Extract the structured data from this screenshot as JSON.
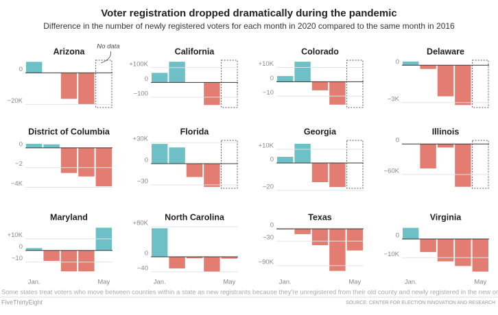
{
  "title": "Voter registration dropped dramatically during the pandemic",
  "subtitle": "Difference in the number of newly registered voters for each month in 2020 compared to the same month in 2016",
  "note": "Some states treat voters who move between counties within a state as new registrants because they're unregistered from their old county and newly registered in the new one.",
  "credit": "FiveThirtyEight",
  "source": "SOURCE: CENTER FOR ELECTION INNOVATION AND RESEARCH",
  "chart_data": [
    {
      "type": "bar",
      "title": "Arizona",
      "annotation": "No data",
      "categories": [
        null,
        null,
        null,
        null,
        null
      ],
      "values": [
        7000,
        0,
        -16500,
        -20000,
        null
      ],
      "ylim": [
        -22000,
        8000
      ],
      "yticks": [
        0,
        {
          "value": -20000,
          "label": "−20K"
        }
      ],
      "colors": {
        "positive": "#6cc0c6",
        "negative": "#e37d71"
      }
    },
    {
      "type": "bar",
      "title": "California",
      "categories": [
        null,
        null,
        null,
        null,
        null
      ],
      "values": [
        65000,
        140000,
        0,
        -153000,
        null
      ],
      "ylim": [
        -170000,
        150000
      ],
      "yticks": [
        {
          "value": 100000,
          "label": "+100K"
        },
        0,
        {
          "value": -100000,
          "label": "−100"
        }
      ],
      "colors": {
        "positive": "#6cc0c6",
        "negative": "#e37d71"
      }
    },
    {
      "type": "bar",
      "title": "Colorado",
      "categories": [
        null,
        null,
        null,
        null,
        null
      ],
      "values": [
        4000,
        14000,
        -6000,
        -16000,
        null
      ],
      "ylim": [
        -18000,
        15000
      ],
      "yticks": [
        {
          "value": 10000,
          "label": "+10K"
        },
        0,
        {
          "value": -10000,
          "label": "−10"
        }
      ],
      "colors": {
        "positive": "#6cc0c6",
        "negative": "#e37d71"
      }
    },
    {
      "type": "bar",
      "title": "Delaware",
      "categories": [
        null,
        null,
        null,
        null,
        null
      ],
      "values": [
        300,
        -300,
        -2500,
        -3200,
        null
      ],
      "ylim": [
        -3400,
        400
      ],
      "yticks": [
        0,
        {
          "value": -3000,
          "label": "−3K"
        }
      ],
      "colors": {
        "positive": "#6cc0c6",
        "negative": "#e37d71"
      }
    },
    {
      "type": "bar",
      "title": "District of Columbia",
      "categories": [
        null,
        null,
        null,
        null,
        null
      ],
      "values": [
        400,
        350,
        -2550,
        -2900,
        -3900
      ],
      "ylim": [
        -4100,
        750
      ],
      "yticks": [
        0,
        {
          "value": -2000,
          "label": "−2"
        },
        {
          "value": -4000,
          "label": "−4K"
        }
      ],
      "colors": {
        "positive": "#6cc0c6",
        "negative": "#e37d71"
      }
    },
    {
      "type": "bar",
      "title": "Florida",
      "categories": [
        null,
        null,
        null,
        null,
        null
      ],
      "values": [
        28000,
        23000,
        -19000,
        -33000,
        null
      ],
      "ylim": [
        -35000,
        33000
      ],
      "yticks": [
        {
          "value": 30000,
          "label": "+30K"
        },
        0,
        {
          "value": -30000,
          "label": "−30"
        }
      ],
      "colors": {
        "positive": "#6cc0c6",
        "negative": "#e37d71"
      }
    },
    {
      "type": "bar",
      "title": "Georgia",
      "categories": [
        null,
        null,
        null,
        null,
        null
      ],
      "values": [
        4500,
        14000,
        -14000,
        -17500,
        null
      ],
      "ylim": [
        -18500,
        16500
      ],
      "yticks": [
        {
          "value": 10000,
          "label": "+10K"
        },
        0,
        {
          "value": -20000,
          "label": "−20"
        }
      ],
      "colors": {
        "positive": "#6cc0c6",
        "negative": "#e37d71"
      }
    },
    {
      "type": "bar",
      "title": "Illinois",
      "categories": [
        null,
        null,
        null,
        null,
        null
      ],
      "values": [
        0,
        -48000,
        -7000,
        -84000,
        null
      ],
      "ylim": [
        -87000,
        7000
      ],
      "yticks": [
        0,
        {
          "value": -60000,
          "label": "−60K"
        }
      ],
      "colors": {
        "positive": "#6cc0c6",
        "negative": "#e37d71"
      }
    },
    {
      "type": "bar",
      "title": "Maryland",
      "categories": [
        "Jan.",
        null,
        null,
        null,
        "May"
      ],
      "values": [
        2000,
        -9000,
        -18000,
        -18000,
        19500
      ],
      "ylim": [
        -19000,
        21000
      ],
      "yticks": [
        {
          "value": 10000,
          "label": "+10K"
        },
        0,
        {
          "value": -10000,
          "label": "−10"
        }
      ],
      "colors": {
        "positive": "#6cc0c6",
        "negative": "#e37d71"
      }
    },
    {
      "type": "bar",
      "title": "North Carolina",
      "categories": [
        "Jan.",
        null,
        null,
        null,
        "May"
      ],
      "values": [
        76000,
        -31000,
        -4000,
        -40000,
        -5000
      ],
      "ylim": [
        -42000,
        82000
      ],
      "yticks": [
        {
          "value": 80000,
          "label": "+80K"
        },
        0,
        {
          "value": -40000,
          "label": "−40"
        }
      ],
      "colors": {
        "positive": "#6cc0c6",
        "negative": "#e37d71"
      }
    },
    {
      "type": "bar",
      "title": "Texas",
      "categories": [
        "Jan.",
        null,
        null,
        null,
        "May"
      ],
      "values": [
        -1500,
        -13000,
        -40000,
        -103000,
        -53000
      ],
      "ylim": [
        -107000,
        7000
      ],
      "yticks": [
        0,
        {
          "value": -30000,
          "label": "−30"
        },
        {
          "value": -90000,
          "label": "−90K"
        }
      ],
      "colors": {
        "positive": "#6cc0c6",
        "negative": "#e37d71"
      }
    },
    {
      "type": "bar",
      "title": "Virginia",
      "categories": [
        "Jan.",
        null,
        null,
        null,
        "May"
      ],
      "values": [
        6000,
        -7000,
        -12000,
        -14500,
        -17500
      ],
      "ylim": [
        -18000,
        7000
      ],
      "yticks": [
        0,
        {
          "value": -10000,
          "label": "−10K"
        }
      ],
      "colors": {
        "positive": "#6cc0c6",
        "negative": "#e37d71"
      }
    }
  ]
}
